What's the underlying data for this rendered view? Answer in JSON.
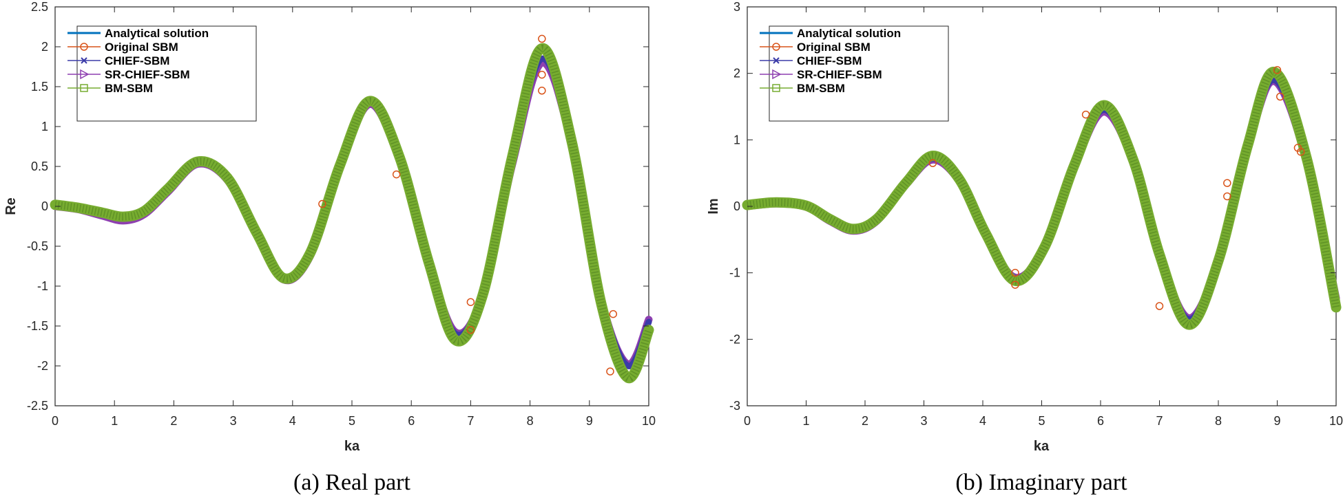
{
  "colors": {
    "analytical": "#0072BD",
    "original": "#D95319",
    "chief": "#3B3BA8",
    "srchief": "#8E3FB0",
    "bm": "#77AC30"
  },
  "chart_data": [
    {
      "type": "line",
      "caption": "(a) Real part",
      "xlabel": "ka",
      "ylabel": "Re",
      "xlim": [
        0,
        10
      ],
      "ylim": [
        -2.5,
        2.5
      ],
      "xticks": [
        "0",
        "1",
        "2",
        "3",
        "4",
        "5",
        "6",
        "7",
        "8",
        "9",
        "10"
      ],
      "yticks": [
        "2.5",
        "2",
        "1.5",
        "1",
        "0.5",
        "0",
        "-0.5",
        "-1",
        "-1.5",
        "-2",
        "-2.5"
      ],
      "legend": [
        "Analytical solution",
        "Original SBM",
        "CHIEF-SBM",
        "SR-CHIEF-SBM",
        "BM-SBM"
      ],
      "legend_position": "top-left",
      "series": [
        {
          "name": "Analytical solution",
          "marker": "none",
          "x": [
            0,
            0.4,
            0.8,
            1.15,
            1.5,
            1.9,
            2.4,
            2.9,
            3.4,
            3.85,
            4.3,
            4.8,
            5.3,
            5.8,
            6.3,
            6.75,
            7.2,
            7.7,
            8.2,
            8.7,
            9.2,
            9.65,
            10
          ],
          "y": [
            0,
            -0.03,
            -0.1,
            -0.15,
            -0.08,
            0.2,
            0.55,
            0.35,
            -0.35,
            -0.9,
            -0.6,
            0.5,
            1.3,
            0.6,
            -0.7,
            -1.65,
            -1.1,
            0.6,
            1.95,
            0.8,
            -1.2,
            -2.1,
            -1.5
          ]
        },
        {
          "name": "Original SBM",
          "marker": "circle",
          "x": [
            4.5,
            5.75,
            7.0,
            7.0,
            8.2,
            8.2,
            8.2,
            9.35,
            9.4
          ],
          "y": [
            0.03,
            0.4,
            -1.2,
            -1.55,
            2.1,
            1.65,
            1.45,
            -2.07,
            -1.35
          ]
        },
        {
          "name": "CHIEF-SBM",
          "marker": "x",
          "x": [
            0,
            0.4,
            0.8,
            1.15,
            1.5,
            1.9,
            2.4,
            2.9,
            3.4,
            3.85,
            4.3,
            4.8,
            5.3,
            5.8,
            6.3,
            6.75,
            7.2,
            7.7,
            8.2,
            8.7,
            9.2,
            9.65,
            10
          ],
          "y": [
            0,
            -0.03,
            -0.1,
            -0.15,
            -0.08,
            0.2,
            0.55,
            0.35,
            -0.35,
            -0.9,
            -0.6,
            0.5,
            1.3,
            0.6,
            -0.7,
            -1.6,
            -1.1,
            0.55,
            1.85,
            0.8,
            -1.15,
            -2.0,
            -1.45
          ]
        },
        {
          "name": "SR-CHIEF-SBM",
          "marker": "triangle-right",
          "x": [
            0,
            0.4,
            0.8,
            1.15,
            1.5,
            1.9,
            2.4,
            2.9,
            3.4,
            3.85,
            4.3,
            4.8,
            5.3,
            5.8,
            6.3,
            6.75,
            7.2,
            7.7,
            8.2,
            8.7,
            9.2,
            9.65,
            10
          ],
          "y": [
            0,
            -0.04,
            -0.12,
            -0.18,
            -0.1,
            0.18,
            0.53,
            0.33,
            -0.37,
            -0.92,
            -0.62,
            0.48,
            1.28,
            0.58,
            -0.72,
            -1.58,
            -1.12,
            0.52,
            1.8,
            0.78,
            -1.17,
            -1.98,
            -1.42
          ]
        },
        {
          "name": "BM-SBM",
          "marker": "square",
          "x": [
            0,
            0.4,
            0.8,
            1.15,
            1.5,
            1.9,
            2.4,
            2.9,
            3.4,
            3.85,
            4.3,
            4.8,
            5.3,
            5.8,
            6.3,
            6.75,
            7.2,
            7.7,
            8.2,
            8.7,
            9.2,
            9.65,
            10
          ],
          "y": [
            0.02,
            -0.02,
            -0.08,
            -0.13,
            -0.06,
            0.22,
            0.56,
            0.36,
            -0.34,
            -0.9,
            -0.58,
            0.52,
            1.32,
            0.62,
            -0.72,
            -1.68,
            -1.12,
            0.62,
            1.98,
            0.82,
            -1.22,
            -2.15,
            -1.55
          ]
        }
      ]
    },
    {
      "type": "line",
      "caption": "(b) Imaginary part",
      "xlabel": "ka",
      "ylabel": "Im",
      "xlim": [
        0,
        10
      ],
      "ylim": [
        -3,
        3
      ],
      "xticks": [
        "0",
        "1",
        "2",
        "3",
        "4",
        "5",
        "6",
        "7",
        "8",
        "9",
        "10"
      ],
      "yticks": [
        "3",
        "2",
        "1",
        "0",
        "-1",
        "-2",
        "-3"
      ],
      "legend": [
        "Analytical solution",
        "Original SBM",
        "CHIEF-SBM",
        "SR-CHIEF-SBM",
        "BM-SBM"
      ],
      "legend_position": "top-left",
      "series": [
        {
          "name": "Analytical solution",
          "marker": "none",
          "x": [
            0,
            0.5,
            1.0,
            1.4,
            1.8,
            2.2,
            2.7,
            3.15,
            3.6,
            4.05,
            4.55,
            5.05,
            5.55,
            6.05,
            6.55,
            7.0,
            7.5,
            8.0,
            8.5,
            8.95,
            9.5,
            10
          ],
          "y": [
            0,
            0.05,
            0,
            -0.2,
            -0.35,
            -0.2,
            0.35,
            0.75,
            0.4,
            -0.4,
            -1.1,
            -0.6,
            0.6,
            1.5,
            0.7,
            -0.7,
            -1.75,
            -0.8,
            0.9,
            2.0,
            0.7,
            -1.5
          ]
        },
        {
          "name": "Original SBM",
          "marker": "circle",
          "x": [
            3.15,
            4.55,
            4.55,
            5.75,
            7.0,
            8.15,
            8.15,
            9.0,
            9.05,
            9.35,
            9.4
          ],
          "y": [
            0.65,
            -1.0,
            -1.18,
            1.38,
            -1.5,
            0.35,
            0.15,
            2.05,
            1.65,
            0.88,
            0.82
          ]
        },
        {
          "name": "CHIEF-SBM",
          "marker": "x",
          "x": [
            0,
            0.5,
            1.0,
            1.4,
            1.8,
            2.2,
            2.7,
            3.15,
            3.6,
            4.05,
            4.55,
            5.05,
            5.55,
            6.05,
            6.55,
            7.0,
            7.5,
            8.0,
            8.5,
            8.95,
            9.5,
            10
          ],
          "y": [
            0,
            0.05,
            0,
            -0.2,
            -0.35,
            -0.2,
            0.35,
            0.72,
            0.4,
            -0.4,
            -1.08,
            -0.6,
            0.6,
            1.45,
            0.7,
            -0.7,
            -1.7,
            -0.8,
            0.9,
            1.9,
            0.7,
            -1.4
          ]
        },
        {
          "name": "SR-CHIEF-SBM",
          "marker": "triangle-right",
          "x": [
            0,
            0.5,
            1.0,
            1.4,
            1.8,
            2.2,
            2.7,
            3.15,
            3.6,
            4.05,
            4.55,
            5.05,
            5.55,
            6.05,
            6.55,
            7.0,
            7.5,
            8.0,
            8.5,
            8.95,
            9.5,
            10
          ],
          "y": [
            0,
            0.04,
            -0.01,
            -0.22,
            -0.37,
            -0.22,
            0.33,
            0.7,
            0.38,
            -0.42,
            -1.07,
            -0.62,
            0.58,
            1.42,
            0.68,
            -0.72,
            -1.68,
            -0.82,
            0.88,
            1.88,
            0.68,
            -1.38
          ]
        },
        {
          "name": "BM-SBM",
          "marker": "square",
          "x": [
            0,
            0.5,
            1.0,
            1.4,
            1.8,
            2.2,
            2.7,
            3.15,
            3.6,
            4.05,
            4.55,
            5.05,
            5.55,
            6.05,
            6.55,
            7.0,
            7.5,
            8.0,
            8.5,
            8.95,
            9.5,
            10
          ],
          "y": [
            0.02,
            0.06,
            0.01,
            -0.19,
            -0.34,
            -0.19,
            0.36,
            0.76,
            0.41,
            -0.41,
            -1.12,
            -0.61,
            0.61,
            1.52,
            0.71,
            -0.72,
            -1.78,
            -0.82,
            0.92,
            2.02,
            0.72,
            -1.52
          ]
        }
      ]
    }
  ]
}
